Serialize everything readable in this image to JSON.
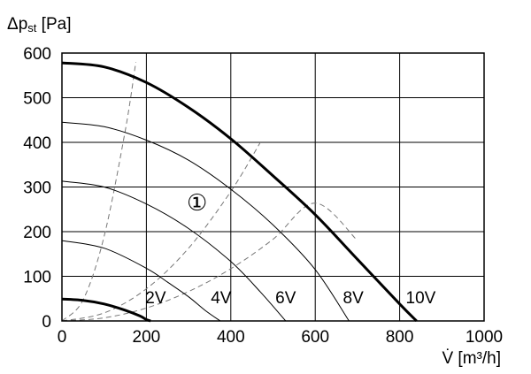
{
  "chart_data": {
    "type": "line",
    "title": "",
    "ylabel_symbol": "Δp",
    "ylabel_sub": "st",
    "ylabel_unit": " [Pa]",
    "xlabel": "V̇ [m³/h]",
    "xlim": [
      0,
      1000
    ],
    "ylim": [
      0,
      600
    ],
    "x_ticks": [
      0,
      200,
      400,
      600,
      800,
      1000
    ],
    "y_ticks": [
      0,
      100,
      200,
      300,
      400,
      500,
      600
    ],
    "grid": true,
    "annotation": "①",
    "annotation_at": [
      320,
      265
    ],
    "series": [
      {
        "name": "2V",
        "label_at": [
          222,
          40
        ],
        "bold": true,
        "x": [
          0,
          50,
          100,
          150,
          185,
          200,
          210
        ],
        "y": [
          49,
          46,
          38,
          24,
          11,
          3,
          0
        ]
      },
      {
        "name": "4V",
        "label_at": [
          377,
          40
        ],
        "bold": false,
        "x": [
          0,
          100,
          200,
          250,
          300,
          340,
          375
        ],
        "y": [
          180,
          163,
          118,
          87,
          54,
          23,
          0
        ]
      },
      {
        "name": "6V",
        "label_at": [
          530,
          40
        ],
        "bold": false,
        "x": [
          0,
          100,
          200,
          300,
          400,
          470,
          530
        ],
        "y": [
          313,
          300,
          262,
          207,
          133,
          65,
          0
        ]
      },
      {
        "name": "8V",
        "label_at": [
          690,
          40
        ],
        "bold": false,
        "x": [
          0,
          100,
          200,
          300,
          400,
          500,
          600,
          680
        ],
        "y": [
          445,
          435,
          405,
          360,
          295,
          215,
          115,
          0
        ]
      },
      {
        "name": "10V",
        "label_at": [
          850,
          40
        ],
        "bold": true,
        "x": [
          0,
          100,
          200,
          300,
          400,
          500,
          600,
          700,
          800,
          840
        ],
        "y": [
          578,
          569,
          534,
          478,
          408,
          325,
          238,
          138,
          38,
          0
        ]
      }
    ],
    "system_curves": [
      {
        "x": [
          0,
          50,
          100,
          150,
          175
        ],
        "y": [
          0,
          47,
          190,
          427,
          580
        ]
      },
      {
        "x": [
          0,
          100,
          200,
          300,
          400,
          470
        ],
        "y": [
          0,
          18,
          72,
          163,
          290,
          400
        ]
      },
      {
        "x": [
          0,
          100,
          200,
          300,
          400,
          500,
          600,
          700
        ],
        "y": [
          0,
          7,
          29,
          66,
          117,
          183,
          264,
          180
        ]
      }
    ]
  }
}
